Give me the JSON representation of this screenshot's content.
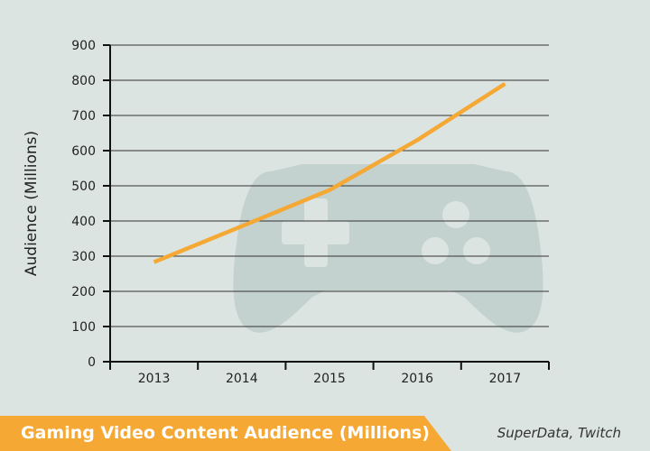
{
  "chart_data": {
    "type": "line",
    "title": "Gaming Video Content Audience (Millions)",
    "source": "SuperData, Twitch",
    "ylabel": "Audience (Millions)",
    "xlabel": "",
    "categories": [
      "2013",
      "2014",
      "2015",
      "2016",
      "2017"
    ],
    "series": [
      {
        "values": [
          283,
          385,
          488,
          630,
          790
        ]
      }
    ],
    "ylim": [
      0,
      900
    ],
    "yticks": [
      0,
      100,
      200,
      300,
      400,
      500,
      600,
      700,
      800,
      900
    ],
    "grid": true,
    "line_color": "#f5a834",
    "watermark": "game-controller-icon"
  },
  "colors": {
    "background": "#dbe4e1",
    "accent": "#f5a834",
    "grid": "#333333",
    "watermark": "#c3d1cf"
  }
}
